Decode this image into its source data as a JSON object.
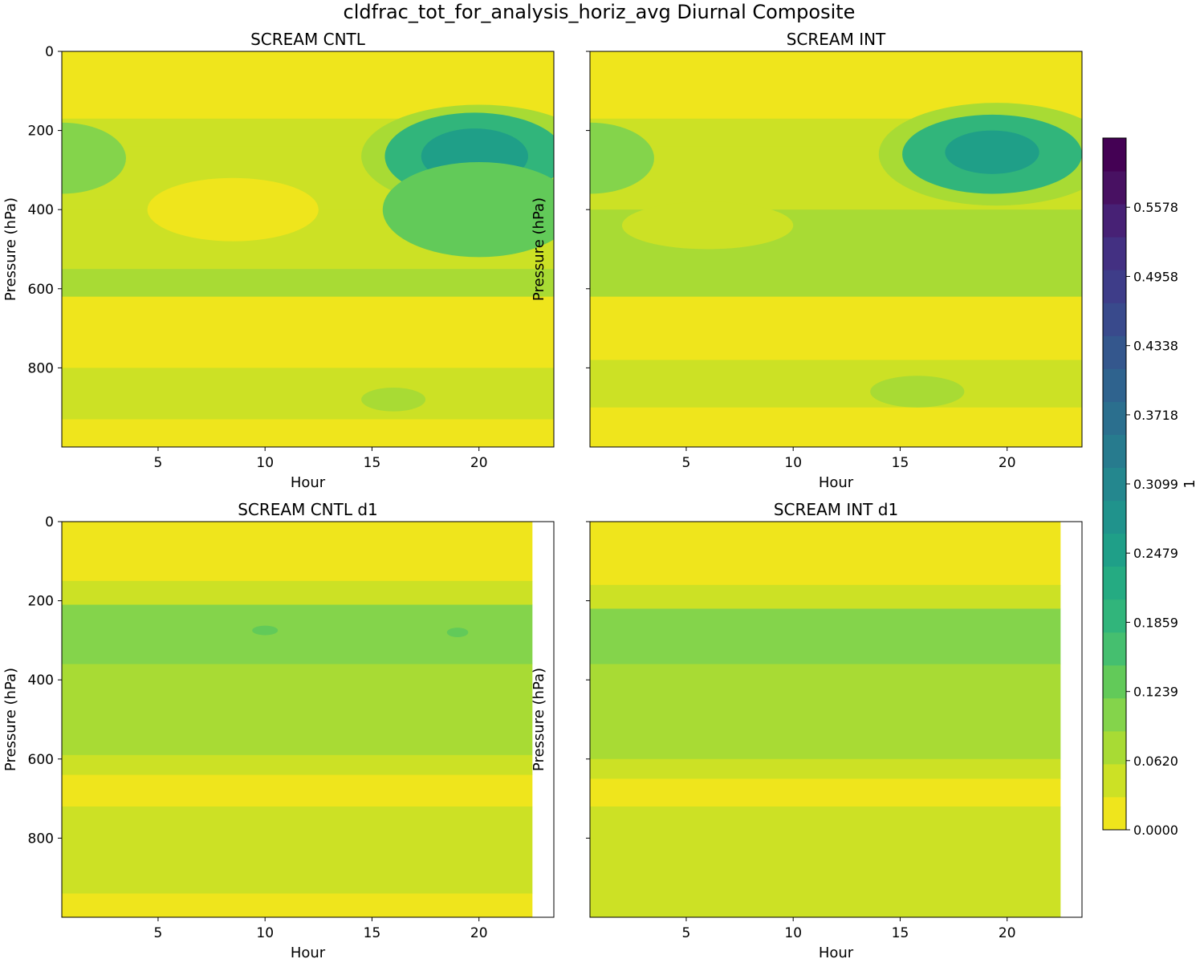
{
  "figure": {
    "title": "cldfrac_tot_for_analysis_horiz_avg Diurnal Composite"
  },
  "chart_data": {
    "type": "contourf",
    "colormap": "viridis_r",
    "colors": [
      "#efe51c",
      "#cce125",
      "#a8db34",
      "#84d44b",
      "#62ca59",
      "#45bf6f",
      "#31b57b",
      "#25ab82",
      "#1f9f88",
      "#20938c",
      "#24878e",
      "#277b8e",
      "#2b6f8e",
      "#2f638e",
      "#34578d",
      "#394a8c",
      "#3e3d89",
      "#433082",
      "#472175",
      "#481162",
      "#440154"
    ],
    "colorbar": {
      "label": "1",
      "range": [
        0,
        0.6198
      ],
      "ticks": [
        0.0,
        0.062,
        0.1239,
        0.1859,
        0.2479,
        0.3099,
        0.3718,
        0.4338,
        0.4958,
        0.5578
      ],
      "tick_labels": [
        "0.0000",
        "0.0620",
        "0.1239",
        "0.1859",
        "0.2479",
        "0.3099",
        "0.3718",
        "0.4338",
        "0.4958",
        "0.5578"
      ]
    },
    "panels": [
      {
        "title": "SCREAM CNTL",
        "xlabel": "Hour",
        "ylabel": "Pressure (hPa)",
        "xlim": [
          0.5,
          23.5
        ],
        "ylim": [
          1000,
          0
        ],
        "x_data_end": 23.5,
        "xticks": [
          5,
          10,
          15,
          20
        ],
        "xtick_labels": [
          "5",
          "10",
          "15",
          "20"
        ],
        "yticks": [
          0,
          200,
          400,
          600,
          800
        ],
        "ytick_labels": [
          "0",
          "200",
          "400",
          "600",
          "800"
        ],
        "show_xlabels": true,
        "show_ylabels": true,
        "field": [
          {
            "p": 0,
            "level": 0
          },
          {
            "p": 120,
            "level": 0
          },
          {
            "p": 170,
            "level": 1,
            "blobs": [
              {
                "x": 20,
                "p": 265,
                "w": 5.5,
                "h": 130,
                "level": 2
              }
            ]
          },
          {
            "p": 240,
            "level": 1,
            "blobs": [
              {
                "x": 0.5,
                "p": 270,
                "w": 3,
                "h": 90,
                "level": 3
              },
              {
                "x": 19.8,
                "p": 265,
                "w": 4.2,
                "h": 110,
                "level": 6
              },
              {
                "x": 19.8,
                "p": 265,
                "w": 2.5,
                "h": 70,
                "level": 8
              }
            ]
          },
          {
            "p": 400,
            "level": 1,
            "blobs": [
              {
                "x": 8.5,
                "p": 400,
                "w": 4,
                "h": 80,
                "level": 0
              },
              {
                "x": 20,
                "p": 400,
                "w": 4.5,
                "h": 120,
                "level": 4
              }
            ]
          },
          {
            "p": 550,
            "level": 2
          },
          {
            "p": 620,
            "level": 0
          },
          {
            "p": 800,
            "level": 1,
            "blobs": [
              {
                "x": 16,
                "p": 880,
                "w": 1.5,
                "h": 30,
                "level": 2
              }
            ]
          },
          {
            "p": 930,
            "level": 0
          },
          {
            "p": 1000,
            "level": 0
          }
        ]
      },
      {
        "title": "SCREAM INT",
        "xlabel": "Hour",
        "ylabel": "Pressure (hPa)",
        "xlim": [
          0.5,
          23.5
        ],
        "ylim": [
          1000,
          0
        ],
        "x_data_end": 23.5,
        "xticks": [
          5,
          10,
          15,
          20
        ],
        "xtick_labels": [
          "5",
          "10",
          "15",
          "20"
        ],
        "yticks": [
          0,
          200,
          400,
          600,
          800
        ],
        "ytick_labels": [
          "",
          "",
          "",
          "",
          ""
        ],
        "show_xlabels": true,
        "show_ylabels": false,
        "field": [
          {
            "p": 0,
            "level": 0
          },
          {
            "p": 120,
            "level": 0
          },
          {
            "p": 170,
            "level": 1,
            "blobs": [
              {
                "x": 19.5,
                "p": 260,
                "w": 5.5,
                "h": 130,
                "level": 2
              }
            ]
          },
          {
            "p": 240,
            "level": 1,
            "blobs": [
              {
                "x": 0.5,
                "p": 270,
                "w": 3,
                "h": 90,
                "level": 3
              },
              {
                "x": 19.3,
                "p": 260,
                "w": 4.2,
                "h": 100,
                "level": 6
              },
              {
                "x": 19.3,
                "p": 255,
                "w": 2.2,
                "h": 55,
                "level": 8
              }
            ]
          },
          {
            "p": 400,
            "level": 2,
            "blobs": [
              {
                "x": 6,
                "p": 440,
                "w": 4,
                "h": 60,
                "level": 1
              }
            ]
          },
          {
            "p": 560,
            "level": 2
          },
          {
            "p": 620,
            "level": 0
          },
          {
            "p": 780,
            "level": 1,
            "blobs": [
              {
                "x": 15.8,
                "p": 860,
                "w": 2.2,
                "h": 40,
                "level": 2
              }
            ]
          },
          {
            "p": 900,
            "level": 0
          },
          {
            "p": 1000,
            "level": 0
          }
        ]
      },
      {
        "title": "SCREAM CNTL d1",
        "xlabel": "Hour",
        "ylabel": "Pressure (hPa)",
        "xlim": [
          0.5,
          23.5
        ],
        "ylim": [
          1000,
          0
        ],
        "x_data_end": 22.5,
        "xticks": [
          5,
          10,
          15,
          20
        ],
        "xtick_labels": [
          "5",
          "10",
          "15",
          "20"
        ],
        "yticks": [
          0,
          200,
          400,
          600,
          800
        ],
        "ytick_labels": [
          "0",
          "200",
          "400",
          "600",
          "800"
        ],
        "show_xlabels": true,
        "show_ylabels": true,
        "field": [
          {
            "p": 0,
            "level": 0
          },
          {
            "p": 150,
            "level": 1
          },
          {
            "p": 210,
            "level": 3,
            "blobs": [
              {
                "x": 10,
                "p": 275,
                "w": 0.6,
                "h": 12,
                "level": 4
              },
              {
                "x": 19,
                "p": 280,
                "w": 0.5,
                "h": 12,
                "level": 4
              }
            ]
          },
          {
            "p": 360,
            "level": 2
          },
          {
            "p": 590,
            "level": 1
          },
          {
            "p": 640,
            "level": 0
          },
          {
            "p": 720,
            "level": 1
          },
          {
            "p": 940,
            "level": 0
          },
          {
            "p": 1000,
            "level": 0
          }
        ]
      },
      {
        "title": "SCREAM INT d1",
        "xlabel": "Hour",
        "ylabel": "Pressure (hPa)",
        "xlim": [
          0.5,
          23.5
        ],
        "ylim": [
          1000,
          0
        ],
        "x_data_end": 22.5,
        "xticks": [
          5,
          10,
          15,
          20
        ],
        "xtick_labels": [
          "5",
          "10",
          "15",
          "20"
        ],
        "yticks": [
          0,
          200,
          400,
          600,
          800
        ],
        "ytick_labels": [
          "",
          "",
          "",
          "",
          ""
        ],
        "show_xlabels": true,
        "show_ylabels": false,
        "field": [
          {
            "p": 0,
            "level": 0
          },
          {
            "p": 160,
            "level": 1
          },
          {
            "p": 220,
            "level": 3
          },
          {
            "p": 360,
            "level": 2
          },
          {
            "p": 600,
            "level": 1
          },
          {
            "p": 650,
            "level": 0
          },
          {
            "p": 720,
            "level": 1
          },
          {
            "p": 1000,
            "level": 1
          }
        ]
      }
    ]
  }
}
